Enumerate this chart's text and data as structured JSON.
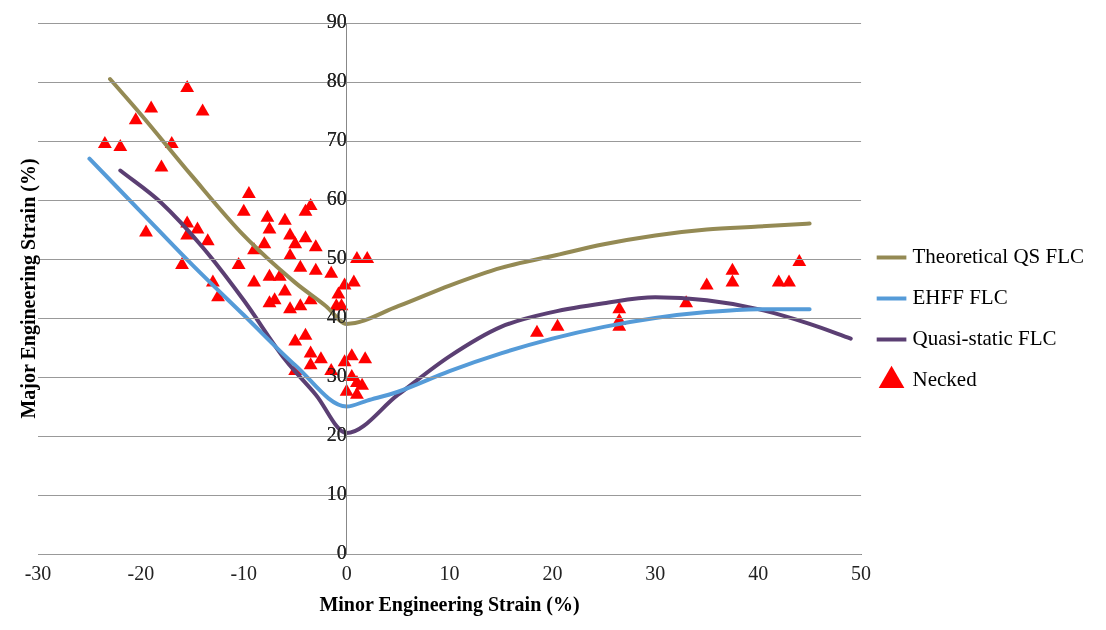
{
  "chart_data": {
    "type": "line",
    "xlabel": "Minor Engineering Strain (%)",
    "ylabel": "Major Engineering Strain (%)",
    "xlim": [
      -30,
      50
    ],
    "xticks": [
      -30,
      -20,
      -10,
      0,
      10,
      20,
      30,
      40,
      50
    ],
    "ylim": [
      0,
      90
    ],
    "yticks": [
      0,
      10,
      20,
      30,
      40,
      50,
      60,
      70,
      80,
      90
    ],
    "grid": "y",
    "legend": "right",
    "marker": "none",
    "line_style": "solid",
    "series": [
      {
        "name": "Theoretical QS FLC",
        "color": "#948a54",
        "x": [
          -23,
          -20,
          -15,
          -10,
          -5,
          -2,
          0,
          5,
          10,
          15,
          20,
          25,
          30,
          35,
          40,
          45
        ],
        "values": [
          80.5,
          74.5,
          64,
          54,
          46,
          42,
          39,
          42,
          45.5,
          48.5,
          50.5,
          52.5,
          54,
          55,
          55.5,
          56
        ]
      },
      {
        "name": "EHFF FLC",
        "color": "#559bd8",
        "x": [
          -25,
          -20,
          -15,
          -10,
          -5,
          0,
          2,
          5,
          10,
          15,
          20,
          25,
          30,
          35,
          40,
          45
        ],
        "values": [
          67,
          58,
          49,
          40.5,
          32,
          25,
          26,
          27.5,
          31,
          34,
          36.5,
          38.5,
          40,
          41,
          41.5,
          41.5
        ]
      },
      {
        "name": "Quasi-static FLC",
        "color": "#5b3f73",
        "x": [
          -22,
          -18,
          -14,
          -10,
          -6,
          -3,
          0,
          5,
          10,
          15,
          20,
          25,
          30,
          35,
          40,
          45,
          49
        ],
        "values": [
          65,
          59.5,
          52,
          43,
          33,
          27,
          20.5,
          27,
          33.5,
          38.5,
          41,
          42.5,
          43.5,
          43,
          41.5,
          39,
          36.5
        ]
      },
      {
        "name": "Necked",
        "color": "#ff0000",
        "type": "scatter",
        "marker": "triangle",
        "x": [
          -23.5,
          -22,
          -20.5,
          -19,
          -15.5,
          -14,
          -17,
          -18,
          -19.5,
          -16,
          -15.5,
          -15.5,
          -14.5,
          -13.5,
          -13,
          -12.5,
          -10.5,
          -10,
          -9.5,
          -9,
          -9,
          -8,
          -7.7,
          -7.5,
          -7.5,
          -7.5,
          -7,
          -6.5,
          -6,
          -5.5,
          -5,
          -5.5,
          -6,
          -5.5,
          -5,
          -5,
          -4.5,
          -4.5,
          -4,
          -4,
          -3.5,
          -3,
          -3,
          -3.5,
          -4,
          -3.5,
          -2.5,
          -3.5,
          -1.5,
          -1,
          -0.8,
          -0.2,
          -0.5,
          -1.5,
          -0.2,
          0.5,
          0.7,
          1,
          2,
          0.5,
          1,
          1,
          1.5,
          1.8,
          0,
          18.5,
          20.5,
          26.5,
          26.5,
          26.5,
          33,
          35,
          37.5,
          37.5,
          42,
          43,
          44
        ],
        "values": [
          69.5,
          69,
          73.5,
          75.5,
          79,
          75,
          69.5,
          65.5,
          54.5,
          49,
          56,
          54,
          55,
          53,
          46,
          43.5,
          49,
          58,
          61,
          51.5,
          46,
          52.5,
          57,
          55,
          47,
          42.5,
          43,
          47,
          56.5,
          54,
          52.5,
          50.5,
          44.5,
          41.5,
          36,
          31,
          42,
          48.5,
          53.5,
          58,
          59,
          52,
          48,
          43,
          37,
          34,
          33,
          32,
          47.5,
          42,
          44,
          45.5,
          42,
          31,
          32.5,
          33.5,
          46,
          50,
          50,
          30,
          29,
          27,
          28.5,
          33,
          27.5,
          37.5,
          38.5,
          41.5,
          39.5,
          38.5,
          42.5,
          45.5,
          48,
          46,
          46,
          46,
          49.5
        ]
      }
    ]
  }
}
